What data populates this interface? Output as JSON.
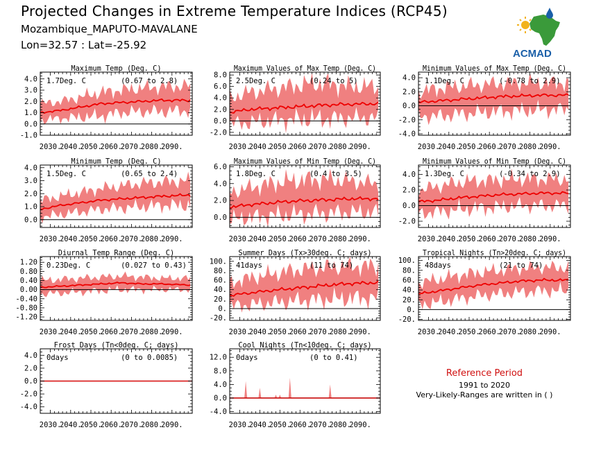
{
  "page": {
    "title": "Projected Changes in Extreme Temperature Indices (RCP45)",
    "location": "Mozambique_MAPUTO-MAVALANE",
    "coordinates": "Lon=32.57 : Lat=-25.92",
    "logo_text": "ACMAD",
    "reference": {
      "title": "Reference Period",
      "years": "1991 to 2020",
      "note": "Very-Likely-Ranges are written in ( )"
    },
    "colors": {
      "band": "#f08080",
      "line": "#ee0000",
      "reference_title": "#d01010",
      "logo_text": "#1a5fa8",
      "logo_map": "#3a9a3a",
      "logo_sun": "#f2b21a"
    }
  },
  "chart_data": [
    {
      "type": "area",
      "title": "Maximum Temp (Deg. C)",
      "summary": "1.7Deg. C",
      "range": "(0.67 to 2.8)",
      "x_ticks": [
        "2030.",
        "2040.",
        "2050.",
        "2060.",
        "2070.",
        "2080.",
        "2090."
      ],
      "y_ticks": [
        "-1.0",
        "0.0",
        "1.0",
        "2.0",
        "3.0",
        "4.0"
      ],
      "ylim": [
        -1.0,
        4.6
      ],
      "series": [
        {
          "x": [
            2025,
            2035,
            2045,
            2055,
            2065,
            2075,
            2085,
            2099
          ],
          "median": [
            1.0,
            1.2,
            1.5,
            1.8,
            1.9,
            2.0,
            2.1,
            2.1
          ],
          "low": [
            0.3,
            0.5,
            0.6,
            0.7,
            1.0,
            1.1,
            1.1,
            1.2
          ],
          "high": [
            1.8,
            2.0,
            2.4,
            2.8,
            3.0,
            3.2,
            3.3,
            3.4
          ]
        }
      ]
    },
    {
      "type": "area",
      "title": "Maximum Values of Max Temp (Deg. C)",
      "summary": "2.5Deg. C",
      "range": "(0.24 to 5)",
      "x_ticks": [
        "2030.",
        "2040.",
        "2050.",
        "2060.",
        "2070.",
        "2080.",
        "2090."
      ],
      "y_ticks": [
        "-2.0",
        "0.0",
        "2.0",
        "4.0",
        "6.0",
        "8.0"
      ],
      "ylim": [
        -2.5,
        8.5
      ],
      "series": [
        {
          "x": [
            2025,
            2035,
            2045,
            2055,
            2065,
            2075,
            2085,
            2099
          ],
          "median": [
            1.5,
            2.0,
            2.2,
            2.4,
            2.6,
            2.8,
            2.9,
            3.0
          ],
          "low": [
            -0.5,
            -0.3,
            0.0,
            0.2,
            0.3,
            0.4,
            0.5,
            0.5
          ],
          "high": [
            4.0,
            5.0,
            5.5,
            6.0,
            6.5,
            6.5,
            6.0,
            6.0
          ]
        }
      ]
    },
    {
      "type": "area",
      "title": "Minimum Values of Max Temp (Deg. C)",
      "summary": "1.1Deg. C",
      "range": "(-0.78 to 2.9)",
      "x_ticks": [
        "2030.",
        "2040.",
        "2050.",
        "2060.",
        "2070.",
        "2080.",
        "2090."
      ],
      "y_ticks": [
        "-4.0",
        "-2.0",
        "0.0",
        "2.0",
        "4.0"
      ],
      "ylim": [
        -4.2,
        4.8
      ],
      "series": [
        {
          "x": [
            2025,
            2035,
            2045,
            2055,
            2065,
            2075,
            2085,
            2099
          ],
          "median": [
            0.5,
            0.7,
            0.9,
            1.1,
            1.3,
            1.4,
            1.5,
            1.5
          ],
          "low": [
            -1.5,
            -1.5,
            -1.2,
            -1.0,
            -0.8,
            -0.7,
            -0.6,
            -0.5
          ],
          "high": [
            2.0,
            2.5,
            2.8,
            3.0,
            3.2,
            3.3,
            3.3,
            3.3
          ]
        }
      ]
    },
    {
      "type": "area",
      "title": "Minimum Temp (Deg. C)",
      "summary": "1.5Deg. C",
      "range": "(0.65 to 2.4)",
      "x_ticks": [
        "2030.",
        "2040.",
        "2050.",
        "2060.",
        "2070.",
        "2080.",
        "2090."
      ],
      "y_ticks": [
        "0.0",
        "1.0",
        "2.0",
        "3.0",
        "4.0"
      ],
      "ylim": [
        -0.6,
        4.2
      ],
      "series": [
        {
          "x": [
            2025,
            2035,
            2045,
            2055,
            2065,
            2075,
            2085,
            2099
          ],
          "median": [
            0.8,
            1.1,
            1.3,
            1.5,
            1.6,
            1.7,
            1.8,
            1.9
          ],
          "low": [
            0.2,
            0.4,
            0.6,
            0.8,
            0.9,
            1.0,
            1.1,
            1.1
          ],
          "high": [
            1.5,
            1.8,
            2.1,
            2.4,
            2.6,
            2.8,
            2.9,
            3.0
          ]
        }
      ]
    },
    {
      "type": "area",
      "title": "Maximum Values of Min Temp (Deg. C)",
      "summary": "1.8Deg. C",
      "range": "(0.4 to 3.5)",
      "x_ticks": [
        "2030.",
        "2040.",
        "2050.",
        "2060.",
        "2070.",
        "2080.",
        "2090."
      ],
      "y_ticks": [
        "0.0",
        "2.0",
        "4.0",
        "6.0"
      ],
      "ylim": [
        -1.2,
        6.2
      ],
      "series": [
        {
          "x": [
            2025,
            2035,
            2045,
            2055,
            2065,
            2075,
            2085,
            2099
          ],
          "median": [
            1.2,
            1.5,
            1.7,
            1.9,
            2.0,
            2.1,
            2.2,
            2.2
          ],
          "low": [
            -0.3,
            0.0,
            0.2,
            0.3,
            0.4,
            0.5,
            0.6,
            0.6
          ],
          "high": [
            3.0,
            3.5,
            4.0,
            4.3,
            4.5,
            4.5,
            4.3,
            4.0
          ]
        }
      ]
    },
    {
      "type": "area",
      "title": "Minimum Values of Min Temp (Deg. C)",
      "summary": "1.3Deg. C",
      "range": "(-0.34 to 2.9)",
      "x_ticks": [
        "2030.",
        "2040.",
        "2050.",
        "2060.",
        "2070.",
        "2080.",
        "2090."
      ],
      "y_ticks": [
        "-2.0",
        "0.0",
        "2.0",
        "4.0"
      ],
      "ylim": [
        -2.8,
        5.2
      ],
      "series": [
        {
          "x": [
            2025,
            2035,
            2045,
            2055,
            2065,
            2075,
            2085,
            2099
          ],
          "median": [
            0.5,
            0.7,
            1.0,
            1.2,
            1.4,
            1.5,
            1.6,
            1.6
          ],
          "low": [
            -1.0,
            -0.8,
            -0.5,
            -0.3,
            -0.2,
            0.0,
            0.0,
            0.0
          ],
          "high": [
            2.0,
            2.5,
            3.0,
            3.2,
            3.3,
            3.4,
            3.4,
            3.4
          ]
        }
      ]
    },
    {
      "type": "area",
      "title": "Diurnal Temp Range (Deg. C)",
      "summary": "0.23Deg. C",
      "range": "(0.027 to 0.43)",
      "x_ticks": [
        "2030.",
        "2040.",
        "2050.",
        "2060.",
        "2070.",
        "2080.",
        "2090."
      ],
      "y_ticks": [
        "-1.20",
        "-0.80",
        "-0.40",
        "0.00",
        "0.40",
        "0.80",
        "1.20"
      ],
      "ylim": [
        -1.35,
        1.45
      ],
      "series": [
        {
          "x": [
            2025,
            2035,
            2045,
            2055,
            2065,
            2075,
            2085,
            2099
          ],
          "median": [
            0.1,
            0.15,
            0.2,
            0.25,
            0.3,
            0.25,
            0.25,
            0.2
          ],
          "low": [
            -0.2,
            -0.15,
            -0.1,
            -0.05,
            0.0,
            0.0,
            0.0,
            0.0
          ],
          "high": [
            0.4,
            0.45,
            0.5,
            0.55,
            0.6,
            0.55,
            0.5,
            0.5
          ]
        }
      ]
    },
    {
      "type": "area",
      "title": "Summer Days (Tx>30deg. C; days)",
      "summary": "41days",
      "range": "(11 to 74)",
      "x_ticks": [
        "2030.",
        "2040.",
        "2050.",
        "2060.",
        "2070.",
        "2080.",
        "2090."
      ],
      "y_ticks": [
        "-20.",
        "0.",
        "20.",
        "40.",
        "60.",
        "80.",
        "100."
      ],
      "ylim": [
        -25,
        110
      ],
      "series": [
        {
          "x": [
            2025,
            2035,
            2045,
            2055,
            2065,
            2075,
            2085,
            2099
          ],
          "median": [
            28,
            33,
            38,
            42,
            46,
            50,
            53,
            55
          ],
          "low": [
            5,
            8,
            12,
            15,
            18,
            20,
            22,
            22
          ],
          "high": [
            55,
            65,
            72,
            80,
            85,
            88,
            90,
            90
          ]
        }
      ]
    },
    {
      "type": "area",
      "title": "Tropical Nights (Tn>20deg. C; days)",
      "summary": "48days",
      "range": "(21 to 74)",
      "x_ticks": [
        "2030.",
        "2040.",
        "2050.",
        "2060.",
        "2070.",
        "2080.",
        "2090."
      ],
      "y_ticks": [
        "-20.",
        "0.",
        "20.",
        "40.",
        "60.",
        "80.",
        "100."
      ],
      "ylim": [
        -22,
        108
      ],
      "series": [
        {
          "x": [
            2025,
            2035,
            2045,
            2055,
            2065,
            2075,
            2085,
            2099
          ],
          "median": [
            32,
            38,
            44,
            50,
            54,
            58,
            60,
            60
          ],
          "low": [
            10,
            15,
            22,
            28,
            32,
            35,
            38,
            38
          ],
          "high": [
            55,
            62,
            70,
            76,
            80,
            84,
            86,
            86
          ]
        }
      ]
    },
    {
      "type": "area",
      "title": "Frost Days (Tn<0deg. C; days)",
      "summary": "0days",
      "range": "(0 to 0.0085)",
      "x_ticks": [
        "2030.",
        "2040.",
        "2050.",
        "2060.",
        "2070.",
        "2080.",
        "2090."
      ],
      "y_ticks": [
        "-4.0",
        "-2.0",
        "0.0",
        "2.0",
        "4.0"
      ],
      "ylim": [
        -5.0,
        5.0
      ],
      "series": [
        {
          "x": [
            2025,
            2099
          ],
          "median": [
            0,
            0
          ],
          "low": [
            0,
            0
          ],
          "high": [
            0,
            0
          ]
        }
      ]
    },
    {
      "type": "area",
      "title": "Cool Nights (Tn<10deg. C; days)",
      "summary": "0days",
      "range": "(0 to 0.41)",
      "x_ticks": [
        "2030.",
        "2040.",
        "2050.",
        "2060.",
        "2070.",
        "2080.",
        "2090."
      ],
      "y_ticks": [
        "-4.0",
        "0.0",
        "4.0",
        "8.0",
        "12.0"
      ],
      "ylim": [
        -4.5,
        14.5
      ],
      "series": [
        {
          "x": [
            2025,
            2099
          ],
          "median": [
            0,
            0
          ],
          "low": [
            0,
            0
          ],
          "high": [
            0,
            0
          ],
          "spikes": [
            [
              2033,
              5
            ],
            [
              2040,
              3
            ],
            [
              2048,
              1
            ],
            [
              2050,
              1
            ],
            [
              2055,
              6
            ],
            [
              2075,
              4
            ]
          ]
        }
      ]
    }
  ]
}
